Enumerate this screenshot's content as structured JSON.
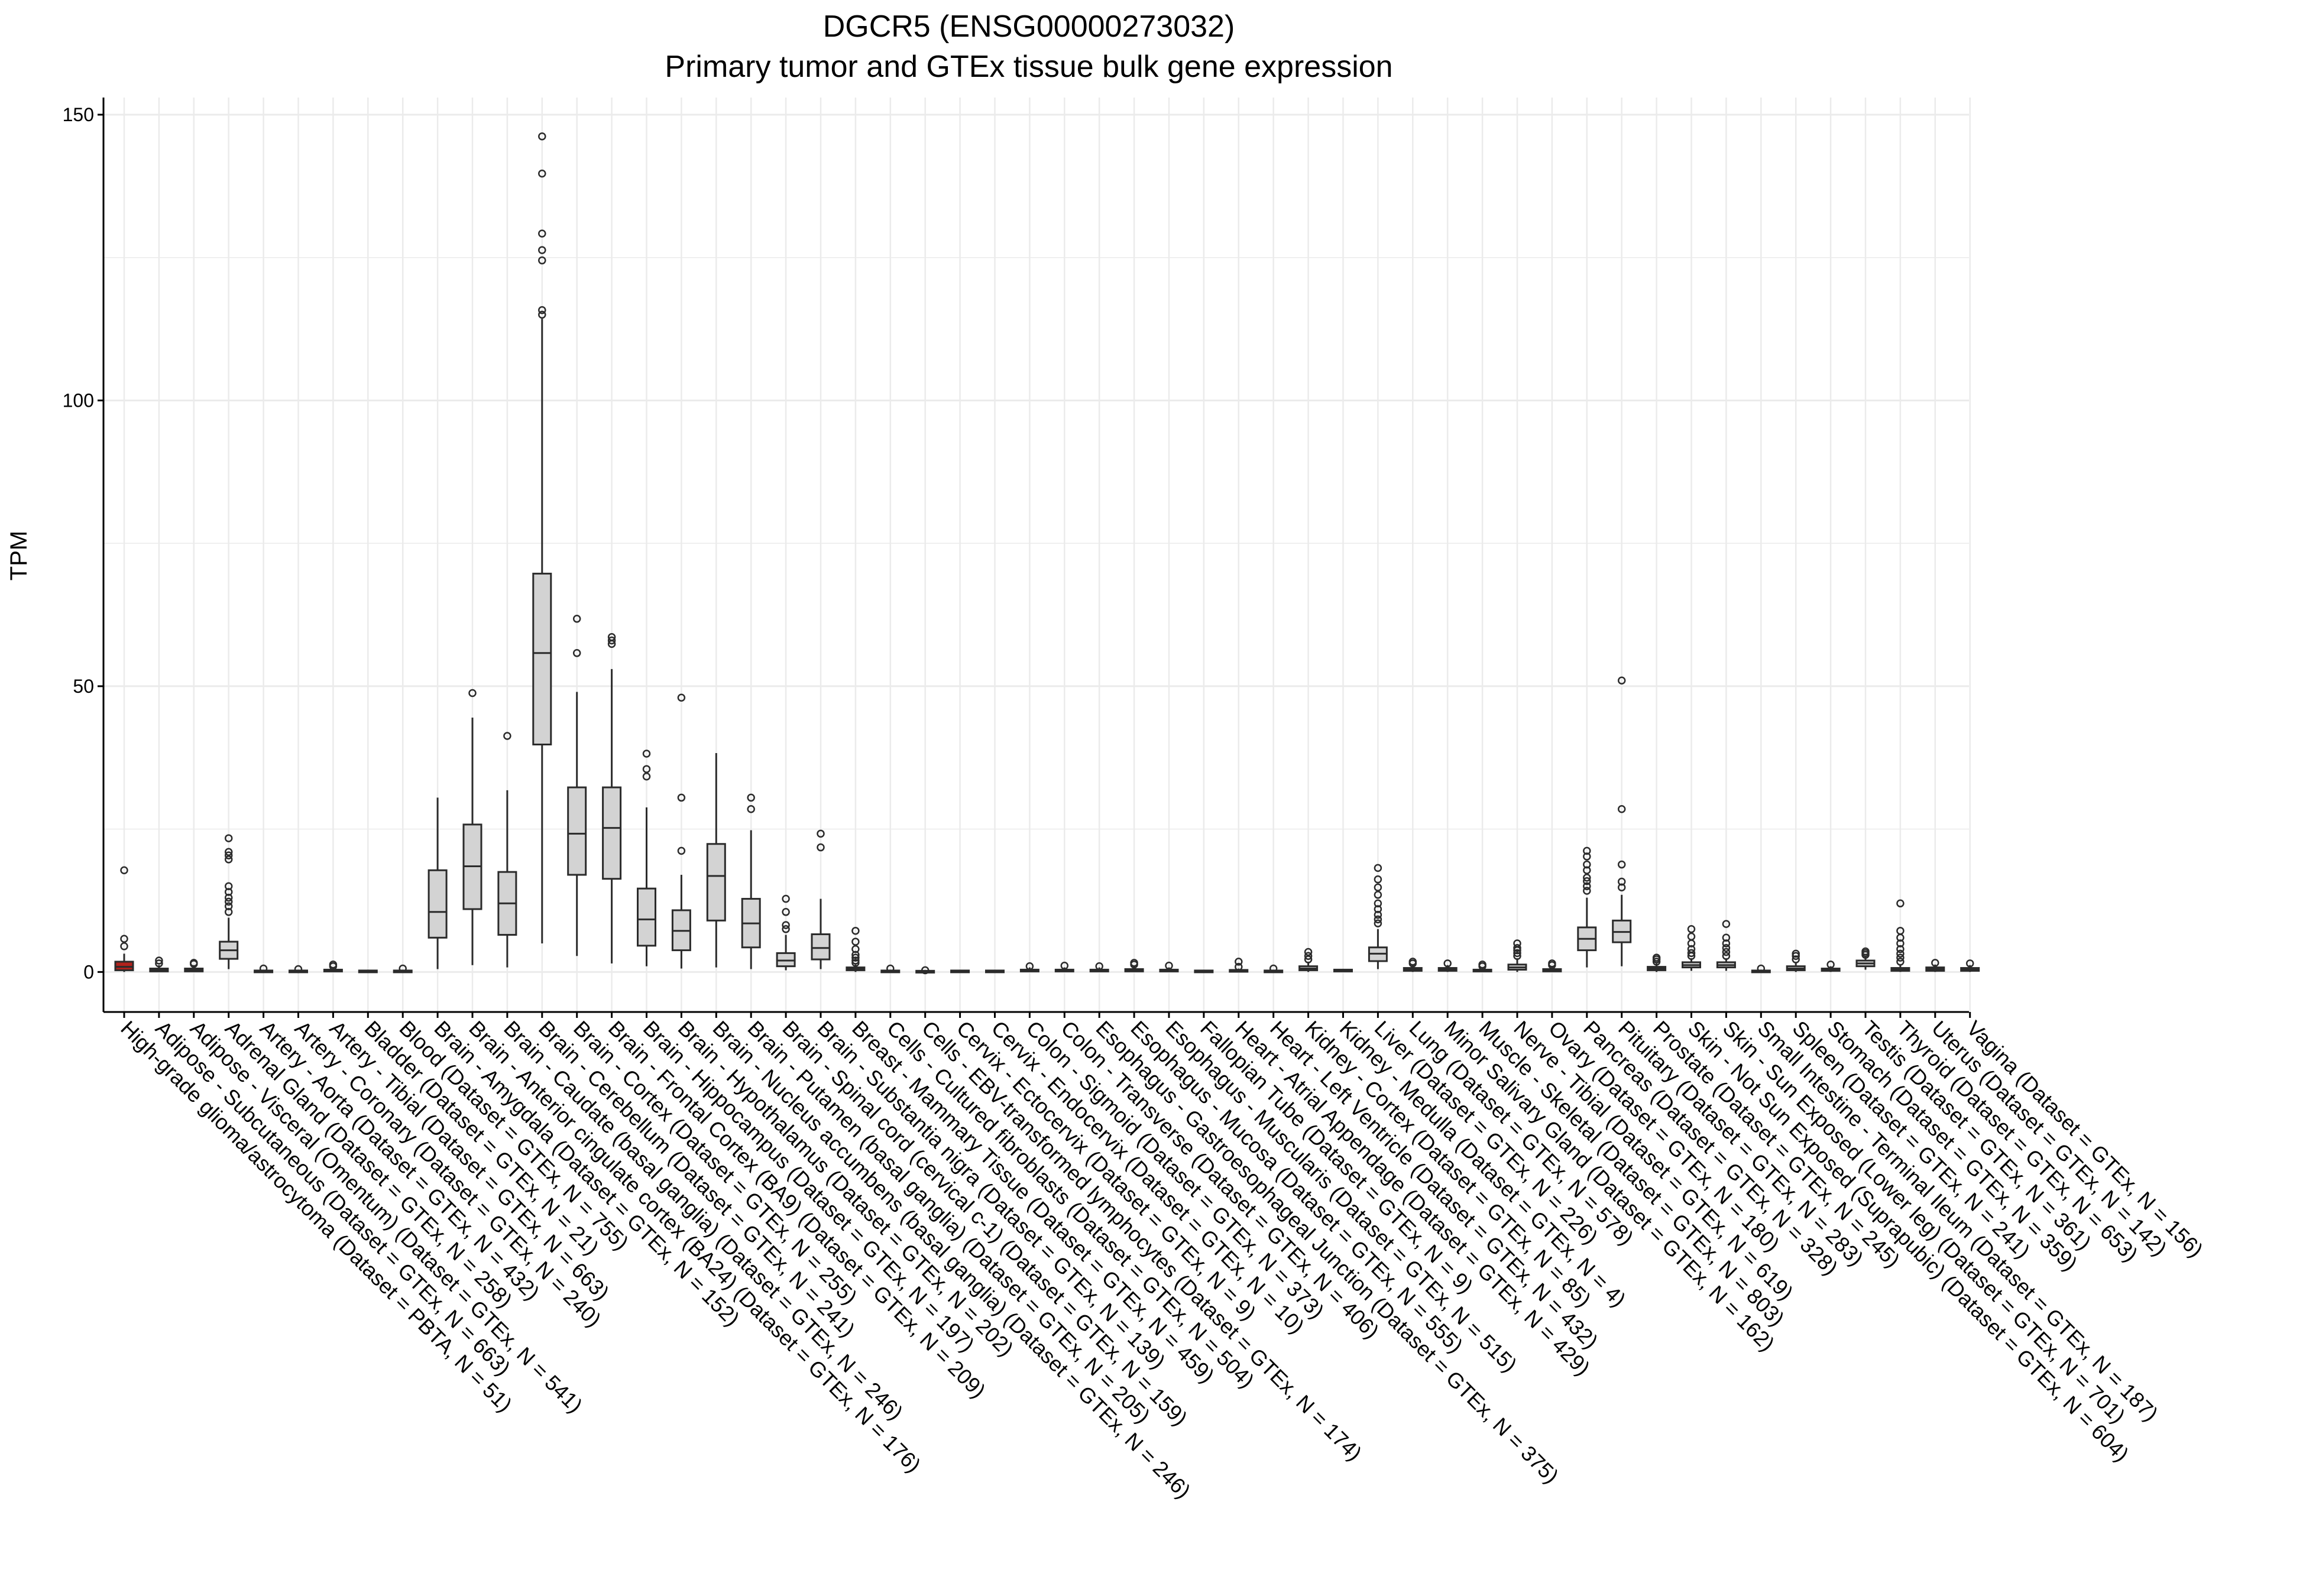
{
  "title": "DGCR5 (ENSG00000273032)",
  "subtitle": "Primary tumor and GTEx tissue bulk gene expression",
  "colors": {
    "highlight_fill": "#b2221c",
    "box_fill": "#d3d3d3",
    "box_stroke": "#2b2b2b",
    "grid": "#ebebeb",
    "axis": "#000000"
  },
  "chart_data": {
    "type": "box",
    "title": "DGCR5 (ENSG00000273032)",
    "subtitle": "Primary tumor and GTEx tissue bulk gene expression",
    "xlabel": "",
    "ylabel": "TPM",
    "ylim": [
      -7,
      153
    ],
    "yticks": [
      0,
      50,
      100,
      150
    ],
    "grid": true,
    "legend": "none",
    "categories": [
      "High-grade glioma/astrocytoma (Dataset = PBTA, N = 51)",
      "Adipose - Subcutaneous (Dataset = GTEx, N = 663)",
      "Adipose - Visceral (Omentum) (Dataset = GTEx, N = 541)",
      "Adrenal Gland (Dataset = GTEx, N = 258)",
      "Artery - Aorta (Dataset = GTEx, N = 432)",
      "Artery - Coronary (Dataset = GTEx, N = 240)",
      "Artery - Tibial (Dataset = GTEx, N = 663)",
      "Bladder (Dataset = GTEx, N = 21)",
      "Blood (Dataset = GTEx, N = 755)",
      "Brain - Amygdala (Dataset = GTEx, N = 152)",
      "Brain - Anterior cingulate cortex (BA24) (Dataset = GTEx, N = 176)",
      "Brain - Caudate (basal ganglia) (Dataset = GTEx, N = 246)",
      "Brain - Cerebellum (Dataset = GTEx, N = 241)",
      "Brain - Cortex (Dataset = GTEx, N = 255)",
      "Brain - Frontal Cortex (BA9) (Dataset = GTEx, N = 209)",
      "Brain - Hippocampus (Dataset = GTEx, N = 197)",
      "Brain - Hypothalamus (Dataset = GTEx, N = 202)",
      "Brain - Nucleus accumbens (basal ganglia) (Dataset = GTEx, N = 246)",
      "Brain - Putamen (basal ganglia) (Dataset = GTEx, N = 205)",
      "Brain - Spinal cord (cervical c-1) (Dataset = GTEx, N = 159)",
      "Brain - Substantia nigra (Dataset = GTEx, N = 139)",
      "Breast - Mammary Tissue (Dataset = GTEx, N = 459)",
      "Cells - Cultured fibroblasts (Dataset = GTEx, N = 504)",
      "Cells - EBV-transformed lymphocytes (Dataset = GTEx, N = 174)",
      "Cervix - Ectocervix (Dataset = GTEx, N = 9)",
      "Cervix - Endocervix (Dataset = GTEx, N = 10)",
      "Colon - Sigmoid (Dataset = GTEx, N = 373)",
      "Colon - Transverse (Dataset = GTEx, N = 406)",
      "Esophagus - Gastroesophageal Junction (Dataset = GTEx, N = 375)",
      "Esophagus - Mucosa (Dataset = GTEx, N = 555)",
      "Esophagus - Muscularis (Dataset = GTEx, N = 515)",
      "Fallopian Tube (Dataset = GTEx, N = 9)",
      "Heart - Atrial Appendage (Dataset = GTEx, N = 429)",
      "Heart - Left Ventricle (Dataset = GTEx, N = 432)",
      "Kidney - Cortex (Dataset = GTEx, N = 85)",
      "Kidney - Medulla (Dataset = GTEx, N = 4)",
      "Liver (Dataset = GTEx, N = 226)",
      "Lung (Dataset = GTEx, N = 578)",
      "Minor Salivary Gland (Dataset = GTEx, N = 162)",
      "Muscle - Skeletal (Dataset = GTEx, N = 803)",
      "Nerve - Tibial (Dataset = GTEx, N = 619)",
      "Ovary (Dataset = GTEx, N = 180)",
      "Pancreas (Dataset = GTEx, N = 328)",
      "Pituitary (Dataset = GTEx, N = 283)",
      "Prostate (Dataset = GTEx, N = 245)",
      "Skin - Not Sun Exposed (Suprapubic) (Dataset = GTEx, N = 604)",
      "Skin - Sun Exposed (Lower leg) (Dataset = GTEx, N = 701)",
      "Small Intestine - Terminal Ileum (Dataset = GTEx, N = 187)",
      "Spleen (Dataset = GTEx, N = 241)",
      "Stomach (Dataset = GTEx, N = 359)",
      "Testis (Dataset = GTEx, N = 361)",
      "Thyroid (Dataset = GTEx, N = 653)",
      "Uterus (Dataset = GTEx, N = 142)",
      "Vagina (Dataset = GTEx, N = 156)"
    ],
    "boxes": [
      {
        "q1": 0.3,
        "median": 0.9,
        "q3": 1.8,
        "min": 0,
        "max": 3.2,
        "outliers": [
          4.5,
          5.8,
          17.8
        ],
        "highlight": true
      },
      {
        "q1": 0.1,
        "median": 0.3,
        "q3": 0.6,
        "min": 0,
        "max": 1.2,
        "outliers": [
          1.5,
          2.0
        ]
      },
      {
        "q1": 0.1,
        "median": 0.3,
        "q3": 0.6,
        "min": 0,
        "max": 1.2,
        "outliers": [
          1.4,
          1.6
        ]
      },
      {
        "q1": 2.3,
        "median": 3.8,
        "q3": 5.3,
        "min": 0.5,
        "max": 9.5,
        "outliers": [
          10.5,
          11.5,
          12.3,
          13.0,
          14.0,
          15.0,
          19.7,
          20.4,
          21.0,
          23.4
        ]
      },
      {
        "q1": 0.0,
        "median": 0.1,
        "q3": 0.2,
        "min": 0,
        "max": 0.4,
        "outliers": [
          0.6
        ]
      },
      {
        "q1": 0.0,
        "median": 0.1,
        "q3": 0.2,
        "min": 0,
        "max": 0.4,
        "outliers": [
          0.5
        ]
      },
      {
        "q1": 0.1,
        "median": 0.2,
        "q3": 0.4,
        "min": 0,
        "max": 0.8,
        "outliers": [
          1.0,
          1.3
        ]
      },
      {
        "q1": 0.0,
        "median": 0.1,
        "q3": 0.2,
        "min": 0,
        "max": 0.4,
        "outliers": []
      },
      {
        "q1": 0.0,
        "median": 0.1,
        "q3": 0.2,
        "min": 0,
        "max": 0.4,
        "outliers": [
          0.6
        ]
      },
      {
        "q1": 6.0,
        "median": 10.5,
        "q3": 17.8,
        "min": 0.5,
        "max": 30.5,
        "outliers": []
      },
      {
        "q1": 11.0,
        "median": 18.5,
        "q3": 25.8,
        "min": 1.2,
        "max": 44.5,
        "outliers": [
          48.8
        ]
      },
      {
        "q1": 6.5,
        "median": 12.0,
        "q3": 17.5,
        "min": 0.8,
        "max": 31.8,
        "outliers": [
          41.3
        ]
      },
      {
        "q1": 39.8,
        "median": 55.8,
        "q3": 69.7,
        "min": 5.0,
        "max": 114.3,
        "outliers": [
          115.0,
          115.8,
          124.5,
          126.3,
          129.2,
          139.7,
          146.2
        ]
      },
      {
        "q1": 17.0,
        "median": 24.2,
        "q3": 32.3,
        "min": 2.8,
        "max": 49.0,
        "outliers": [
          55.8,
          61.8
        ]
      },
      {
        "q1": 16.3,
        "median": 25.2,
        "q3": 32.3,
        "min": 1.5,
        "max": 53.0,
        "outliers": [
          57.4,
          58.0,
          58.6
        ]
      },
      {
        "q1": 4.6,
        "median": 9.2,
        "q3": 14.6,
        "min": 1.0,
        "max": 28.8,
        "outliers": [
          34.2,
          35.5,
          38.2
        ]
      },
      {
        "q1": 3.8,
        "median": 7.2,
        "q3": 10.8,
        "min": 0.6,
        "max": 17.0,
        "outliers": [
          21.2,
          30.5,
          48.0
        ]
      },
      {
        "q1": 9.0,
        "median": 16.8,
        "q3": 22.4,
        "min": 0.8,
        "max": 38.3,
        "outliers": []
      },
      {
        "q1": 4.3,
        "median": 8.5,
        "q3": 12.8,
        "min": 0.5,
        "max": 24.8,
        "outliers": [
          28.5,
          30.5
        ]
      },
      {
        "q1": 1.0,
        "median": 2.0,
        "q3": 3.3,
        "min": 0.3,
        "max": 6.5,
        "outliers": [
          7.5,
          8.2,
          10.5,
          12.8
        ]
      },
      {
        "q1": 2.2,
        "median": 4.2,
        "q3": 6.6,
        "min": 0.5,
        "max": 12.8,
        "outliers": [
          21.8,
          24.2
        ]
      },
      {
        "q1": 0.3,
        "median": 0.5,
        "q3": 0.8,
        "min": 0,
        "max": 1.3,
        "outliers": [
          1.6,
          2.0,
          2.5,
          3.0,
          4.0,
          5.3,
          7.2
        ]
      },
      {
        "q1": 0.0,
        "median": 0.1,
        "q3": 0.2,
        "min": 0,
        "max": 0.4,
        "outliers": [
          0.6
        ]
      },
      {
        "q1": 0.0,
        "median": 0.0,
        "q3": 0.1,
        "min": 0,
        "max": 0.2,
        "outliers": [
          0.3
        ]
      },
      {
        "q1": 0.0,
        "median": 0.1,
        "q3": 0.2,
        "min": 0,
        "max": 0.3,
        "outliers": []
      },
      {
        "q1": 0.0,
        "median": 0.1,
        "q3": 0.2,
        "min": 0,
        "max": 0.3,
        "outliers": []
      },
      {
        "q1": 0.1,
        "median": 0.2,
        "q3": 0.4,
        "min": 0,
        "max": 0.8,
        "outliers": [
          1.0
        ]
      },
      {
        "q1": 0.1,
        "median": 0.2,
        "q3": 0.4,
        "min": 0,
        "max": 0.8,
        "outliers": [
          1.1
        ]
      },
      {
        "q1": 0.1,
        "median": 0.2,
        "q3": 0.4,
        "min": 0,
        "max": 0.8,
        "outliers": [
          1.0
        ]
      },
      {
        "q1": 0.1,
        "median": 0.3,
        "q3": 0.5,
        "min": 0,
        "max": 1.0,
        "outliers": [
          1.3,
          1.6
        ]
      },
      {
        "q1": 0.1,
        "median": 0.2,
        "q3": 0.4,
        "min": 0,
        "max": 0.8,
        "outliers": [
          1.1
        ]
      },
      {
        "q1": 0.0,
        "median": 0.1,
        "q3": 0.2,
        "min": 0,
        "max": 0.3,
        "outliers": []
      },
      {
        "q1": 0.1,
        "median": 0.2,
        "q3": 0.3,
        "min": 0,
        "max": 0.6,
        "outliers": [
          0.9,
          1.8
        ]
      },
      {
        "q1": 0.0,
        "median": 0.1,
        "q3": 0.2,
        "min": 0,
        "max": 0.4,
        "outliers": [
          0.6
        ]
      },
      {
        "q1": 0.3,
        "median": 0.6,
        "q3": 1.0,
        "min": 0,
        "max": 1.8,
        "outliers": [
          2.2,
          2.8,
          3.5
        ]
      },
      {
        "q1": 0.1,
        "median": 0.3,
        "q3": 0.4,
        "min": 0.1,
        "max": 0.5,
        "outliers": []
      },
      {
        "q1": 1.9,
        "median": 3.2,
        "q3": 4.3,
        "min": 0.5,
        "max": 7.5,
        "outliers": [
          8.5,
          9.2,
          10.0,
          11.0,
          12.0,
          13.5,
          14.8,
          16.2,
          18.2
        ]
      },
      {
        "q1": 0.2,
        "median": 0.4,
        "q3": 0.7,
        "min": 0,
        "max": 1.2,
        "outliers": [
          1.5,
          1.8
        ]
      },
      {
        "q1": 0.2,
        "median": 0.4,
        "q3": 0.7,
        "min": 0,
        "max": 1.2,
        "outliers": [
          1.5
        ]
      },
      {
        "q1": 0.1,
        "median": 0.2,
        "q3": 0.4,
        "min": 0,
        "max": 0.8,
        "outliers": [
          1.0,
          1.3
        ]
      },
      {
        "q1": 0.4,
        "median": 0.8,
        "q3": 1.3,
        "min": 0,
        "max": 2.4,
        "outliers": [
          2.8,
          3.3,
          3.8,
          4.2,
          5.0
        ]
      },
      {
        "q1": 0.1,
        "median": 0.3,
        "q3": 0.5,
        "min": 0,
        "max": 0.9,
        "outliers": [
          1.2,
          1.5
        ]
      },
      {
        "q1": 3.8,
        "median": 5.8,
        "q3": 7.8,
        "min": 0.8,
        "max": 13.0,
        "outliers": [
          14.2,
          15.0,
          15.9,
          16.5,
          17.8,
          18.8,
          20.2,
          21.2
        ]
      },
      {
        "q1": 5.2,
        "median": 7.0,
        "q3": 9.0,
        "min": 1.0,
        "max": 13.5,
        "outliers": [
          14.8,
          15.8,
          18.8,
          28.5,
          51.0
        ]
      },
      {
        "q1": 0.3,
        "median": 0.6,
        "q3": 0.9,
        "min": 0,
        "max": 1.5,
        "outliers": [
          1.8,
          2.2,
          2.5
        ]
      },
      {
        "q1": 0.8,
        "median": 1.2,
        "q3": 1.7,
        "min": 0.2,
        "max": 2.4,
        "outliers": [
          2.8,
          3.3,
          4.0,
          5.0,
          6.2,
          7.5
        ]
      },
      {
        "q1": 0.8,
        "median": 1.2,
        "q3": 1.7,
        "min": 0.2,
        "max": 2.4,
        "outliers": [
          2.8,
          3.5,
          4.2,
          5.0,
          6.0,
          8.4
        ]
      },
      {
        "q1": 0.0,
        "median": 0.1,
        "q3": 0.2,
        "min": 0,
        "max": 0.4,
        "outliers": [
          0.6
        ]
      },
      {
        "q1": 0.3,
        "median": 0.6,
        "q3": 1.0,
        "min": 0,
        "max": 1.7,
        "outliers": [
          2.2,
          2.8,
          3.2
        ]
      },
      {
        "q1": 0.2,
        "median": 0.4,
        "q3": 0.6,
        "min": 0,
        "max": 1.0,
        "outliers": [
          1.3
        ]
      },
      {
        "q1": 1.0,
        "median": 1.5,
        "q3": 2.0,
        "min": 0.4,
        "max": 2.7,
        "outliers": [
          3.0,
          3.3,
          3.6
        ]
      },
      {
        "q1": 0.2,
        "median": 0.4,
        "q3": 0.7,
        "min": 0,
        "max": 1.3,
        "outliers": [
          1.8,
          2.5,
          3.2,
          4.0,
          5.0,
          6.0,
          7.2,
          12.0
        ]
      },
      {
        "q1": 0.2,
        "median": 0.5,
        "q3": 0.8,
        "min": 0,
        "max": 1.3,
        "outliers": [
          1.6
        ]
      },
      {
        "q1": 0.2,
        "median": 0.4,
        "q3": 0.7,
        "min": 0,
        "max": 1.2,
        "outliers": [
          1.5
        ]
      }
    ]
  }
}
